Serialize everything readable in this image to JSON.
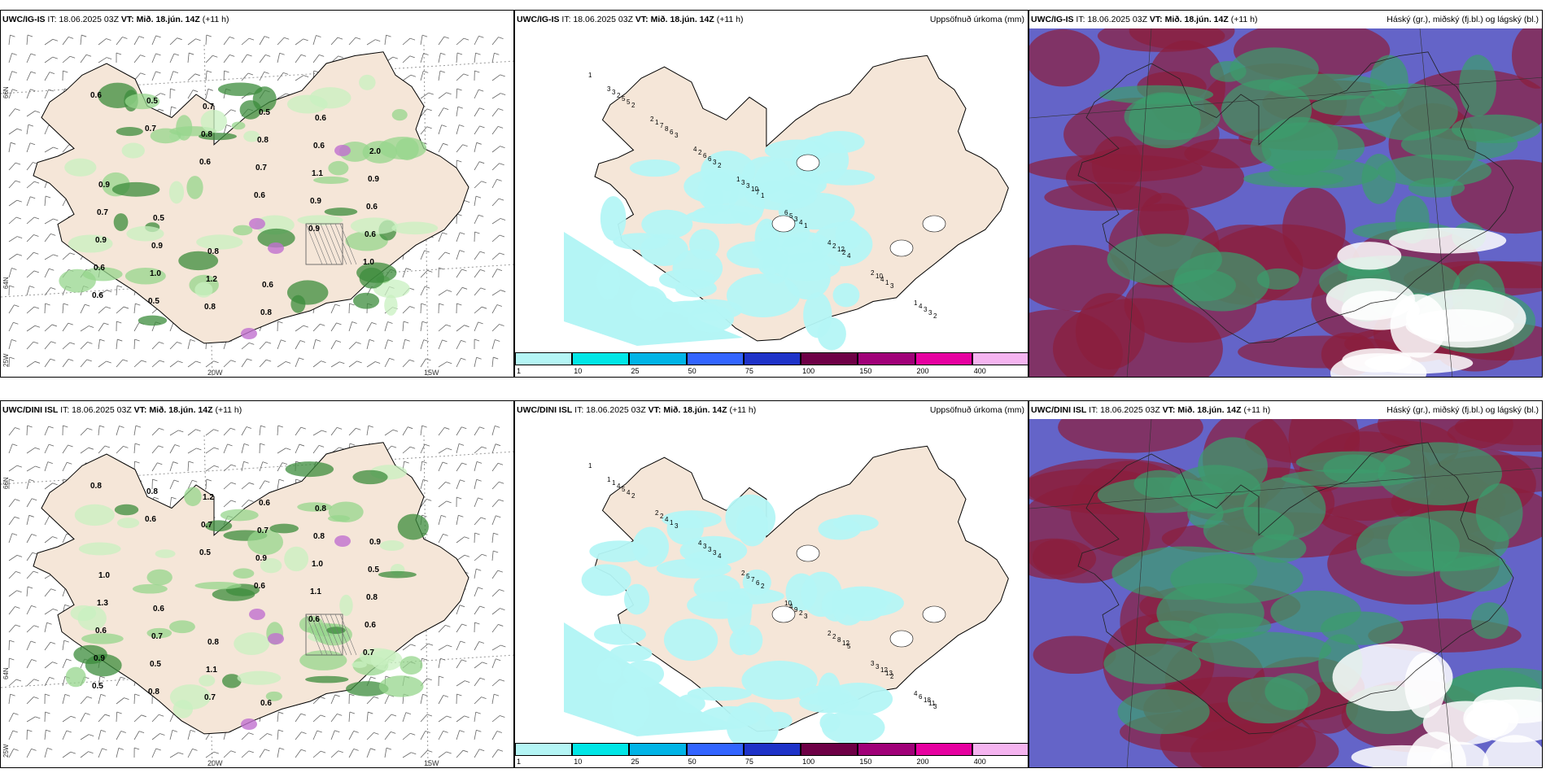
{
  "panels": {
    "ig_wind": {
      "model": "UWC/IG-IS",
      "it": "IT: 18.06.2025 03Z",
      "vt_label": "VT:",
      "vt": "Mið. 18.jún. 14Z",
      "lead": "(+11 h)",
      "right_title": ""
    },
    "ig_precip": {
      "model": "UWC/IG-IS",
      "it": "IT: 18.06.2025 03Z",
      "vt_label": "VT:",
      "vt": "Mið. 18.jún. 14Z",
      "lead": "(+11 h)",
      "right_title": "Uppsöfnuð úrkoma (mm)"
    },
    "ig_cloud": {
      "model": "UWC/IG-IS",
      "it": "IT: 18.06.2025 03Z",
      "vt_label": "VT:",
      "vt": "Mið. 18.jún. 14Z",
      "lead": "(+11 h)",
      "right_title": "Háský (gr.), miðský (fj.bl.) og lágský (bl.)"
    },
    "dini_wind": {
      "model": "UWC/DINI ISL",
      "it": "IT: 18.06.2025 03Z",
      "vt_label": "VT:",
      "vt": "Mið. 18.jún. 14Z",
      "lead": "(+11 h)",
      "right_title": ""
    },
    "dini_precip": {
      "model": "UWC/DINI ISL",
      "it": "IT: 18.06.2025 03Z",
      "vt_label": "VT:",
      "vt": "Mið. 18.jún. 14Z",
      "lead": "(+11 h)",
      "right_title": "Uppsöfnuð úrkoma (mm)"
    },
    "dini_cloud": {
      "model": "UWC/DINI ISL",
      "it": "IT: 18.06.2025 03Z",
      "vt_label": "VT:",
      "vt": "Mið. 18.jún. 14Z",
      "lead": "(+11 h)",
      "right_title": "Háský (gr.), miðský (fj.bl.) og lágský (bl.)"
    }
  },
  "axes": {
    "lon_labels": [
      "20W",
      "15W"
    ],
    "lat_labels": [
      "66N",
      "64N"
    ],
    "lon_left_label": "25W"
  },
  "colorbar": {
    "labels": [
      "1",
      "10",
      "25",
      "50",
      "75",
      "100",
      "150",
      "200",
      "400"
    ],
    "colors": [
      "#b4f5f5",
      "#00e6e6",
      "#00b4e6",
      "#3264ff",
      "#1e32c8",
      "#6e0046",
      "#a00078",
      "#e600a0",
      "#f5b4f0"
    ]
  },
  "wind_values_ig": [
    "0.6",
    "0.7",
    "0.6",
    "0.6",
    "0.9",
    "1.0",
    "0.6",
    "0.5",
    "0.8",
    "0.7",
    "0.9",
    "0.6",
    "0.6",
    "0.5",
    "0.7",
    "0.8",
    "1.1",
    "0.6",
    "0.9",
    "1.0",
    "0.8",
    "0.5",
    "0.6",
    "0.9",
    "0.7",
    "0.9",
    "1.2",
    "0.8",
    "0.6",
    "2.0",
    "0.9",
    "0.5",
    "0.8",
    "0.6"
  ],
  "wind_values_dini": [
    "0.8",
    "0.6",
    "0.5",
    "0.6",
    "0.6",
    "0.7",
    "0.5",
    "0.8",
    "0.7",
    "0.9",
    "1.1",
    "0.6",
    "0.9",
    "0.8",
    "1.2",
    "0.7",
    "1.0",
    "0.8",
    "0.6",
    "0.5",
    "0.7",
    "0.6",
    "0.8",
    "0.5",
    "1.3",
    "0.7",
    "1.1",
    "0.6",
    "0.8",
    "0.9",
    "1.0",
    "0.6",
    "0.8"
  ],
  "precip_values_ig": [
    "1",
    "2",
    "3",
    "2",
    "1",
    "1",
    "4",
    "3",
    "2",
    "5",
    "6",
    "3",
    "7",
    "4",
    "2",
    "1",
    "3",
    "5",
    "8",
    "6",
    "10",
    "3",
    "12",
    "4",
    "3",
    "2",
    "7",
    "6",
    "3",
    "5",
    "2",
    "10",
    "4",
    "3",
    "1",
    "2",
    "3",
    "6",
    "4",
    "2",
    "1",
    "3",
    "2",
    "4",
    "1"
  ],
  "precip_values_dini": [
    "1",
    "2",
    "3",
    "4",
    "2",
    "3",
    "5",
    "2",
    "3",
    "4",
    "1",
    "3",
    "6",
    "2",
    "12",
    "13",
    "11",
    "5",
    "4",
    "3",
    "7",
    "9",
    "8",
    "12",
    "18",
    "4",
    "2",
    "3",
    "5",
    "4",
    "2",
    "3",
    "6",
    "1",
    "2",
    "4",
    "2",
    "10",
    "2",
    "3",
    "4",
    "1"
  ],
  "colors": {
    "land": "#f5e6d8",
    "green_light": "#c8f0c0",
    "green_mid": "#96d68c",
    "green_dark": "#3c8c3c",
    "cyan_light": "#b4f5f5",
    "cloud_blue": "#6464c8",
    "cloud_red": "#8c1e3c",
    "cloud_green": "#3c9c6c"
  }
}
